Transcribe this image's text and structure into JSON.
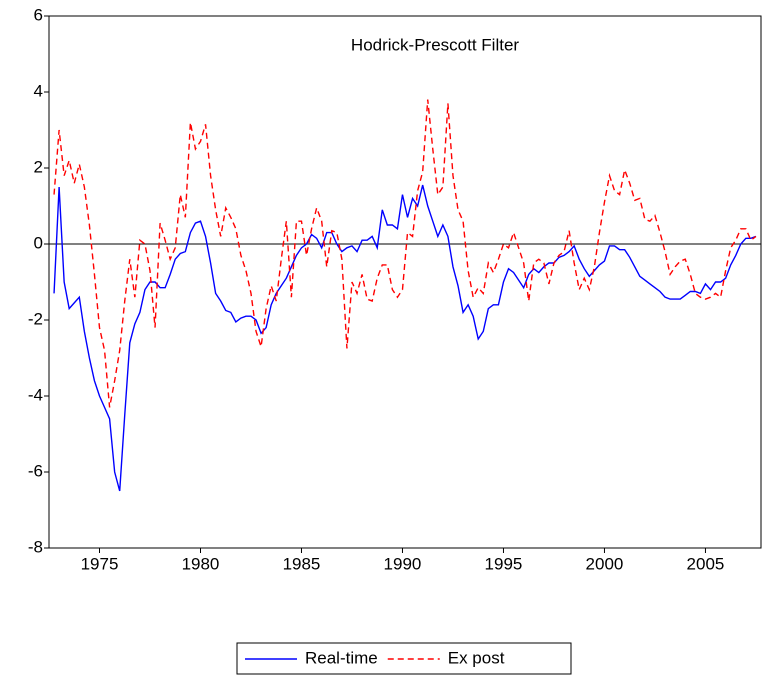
{
  "chart_data": {
    "type": "line",
    "title": "Hodrick-Prescott Filter",
    "x": [
      1972.75,
      1973,
      1973.25,
      1973.5,
      1973.75,
      1974,
      1974.25,
      1974.5,
      1974.75,
      1975,
      1975.25,
      1975.5,
      1975.75,
      1976,
      1976.25,
      1976.5,
      1976.75,
      1977,
      1977.25,
      1977.5,
      1977.75,
      1978,
      1978.25,
      1978.5,
      1978.75,
      1979,
      1979.25,
      1979.5,
      1979.75,
      1980,
      1980.25,
      1980.5,
      1980.75,
      1981,
      1981.25,
      1981.5,
      1981.75,
      1982,
      1982.25,
      1982.5,
      1982.75,
      1983,
      1983.25,
      1983.5,
      1983.75,
      1984,
      1984.25,
      1984.5,
      1984.75,
      1985,
      1985.25,
      1985.5,
      1985.75,
      1986,
      1986.25,
      1986.5,
      1986.75,
      1987,
      1987.25,
      1987.5,
      1987.75,
      1988,
      1988.25,
      1988.5,
      1988.75,
      1989,
      1989.25,
      1989.5,
      1989.75,
      1990,
      1990.25,
      1990.5,
      1990.75,
      1991,
      1991.25,
      1991.5,
      1991.75,
      1992,
      1992.25,
      1992.5,
      1992.75,
      1993,
      1993.25,
      1993.5,
      1993.75,
      1994,
      1994.25,
      1994.5,
      1994.75,
      1995,
      1995.25,
      1995.5,
      1995.75,
      1996,
      1996.25,
      1996.5,
      1996.75,
      1997,
      1997.25,
      1997.5,
      1997.75,
      1998,
      1998.25,
      1998.5,
      1998.75,
      1999,
      1999.25,
      1999.5,
      1999.75,
      2000,
      2000.25,
      2000.5,
      2000.75,
      2001,
      2001.25,
      2001.5,
      2001.75,
      2002,
      2002.25,
      2002.5,
      2002.75,
      2003,
      2003.25,
      2003.5,
      2003.75,
      2004,
      2004.25,
      2004.5,
      2004.75,
      2005,
      2005.25,
      2005.5,
      2005.75,
      2006,
      2006.25,
      2006.5,
      2006.75,
      2007,
      2007.25,
      2007.5
    ],
    "series": [
      {
        "name": "Real-time",
        "color": "#0000ff",
        "style": "solid",
        "values": [
          -1.3,
          1.5,
          -1.0,
          -1.7,
          -1.55,
          -1.4,
          -2.3,
          -3.0,
          -3.6,
          -4.0,
          -4.3,
          -4.6,
          -6.0,
          -6.5,
          -4.5,
          -2.6,
          -2.1,
          -1.8,
          -1.2,
          -1.0,
          -1.0,
          -1.15,
          -1.15,
          -0.8,
          -0.4,
          -0.25,
          -0.2,
          0.3,
          0.55,
          0.6,
          0.2,
          -0.5,
          -1.3,
          -1.5,
          -1.75,
          -1.8,
          -2.05,
          -1.95,
          -1.9,
          -1.9,
          -2.0,
          -2.35,
          -2.2,
          -1.6,
          -1.3,
          -1.1,
          -0.9,
          -0.6,
          -0.3,
          -0.1,
          0.0,
          0.25,
          0.15,
          -0.1,
          0.3,
          0.3,
          0.0,
          -0.2,
          -0.1,
          -0.05,
          -0.2,
          0.1,
          0.1,
          0.2,
          -0.1,
          0.9,
          0.5,
          0.5,
          0.4,
          1.3,
          0.7,
          1.2,
          1.0,
          1.55,
          1.0,
          0.6,
          0.2,
          0.5,
          0.2,
          -0.6,
          -1.1,
          -1.8,
          -1.6,
          -1.9,
          -2.5,
          -2.3,
          -1.7,
          -1.6,
          -1.6,
          -1.0,
          -0.65,
          -0.75,
          -0.95,
          -1.15,
          -0.8,
          -0.65,
          -0.75,
          -0.6,
          -0.5,
          -0.5,
          -0.35,
          -0.3,
          -0.2,
          -0.05,
          -0.4,
          -0.65,
          -0.85,
          -0.7,
          -0.55,
          -0.45,
          -0.05,
          -0.05,
          -0.15,
          -0.15,
          -0.35,
          -0.6,
          -0.85,
          -0.95,
          -1.05,
          -1.15,
          -1.25,
          -1.4,
          -1.45,
          -1.45,
          -1.45,
          -1.35,
          -1.25,
          -1.25,
          -1.3,
          -1.05,
          -1.2,
          -1.0,
          -1.0,
          -0.9,
          -0.55,
          -0.3,
          0.0,
          0.15,
          0.15,
          0.2
        ]
      },
      {
        "name": "Ex post",
        "color": "#ff0000",
        "style": "dashed",
        "values": [
          1.3,
          3.0,
          1.8,
          2.2,
          1.6,
          2.1,
          1.5,
          0.5,
          -0.8,
          -2.2,
          -2.8,
          -4.3,
          -3.6,
          -2.8,
          -1.5,
          -0.4,
          -1.4,
          0.1,
          0.0,
          -0.7,
          -2.2,
          0.55,
          0.1,
          -0.4,
          -0.1,
          1.3,
          0.7,
          3.2,
          2.5,
          2.7,
          3.15,
          1.8,
          0.9,
          0.2,
          0.95,
          0.7,
          0.4,
          -0.3,
          -0.7,
          -1.3,
          -2.3,
          -2.7,
          -1.7,
          -1.1,
          -1.5,
          -0.4,
          0.6,
          -1.4,
          0.6,
          0.6,
          -0.3,
          0.4,
          0.95,
          0.6,
          -0.6,
          0.35,
          0.3,
          -0.4,
          -2.75,
          -1.0,
          -1.3,
          -0.8,
          -1.45,
          -1.5,
          -0.9,
          -0.55,
          -0.55,
          -1.2,
          -1.4,
          -1.2,
          0.3,
          0.2,
          1.4,
          1.9,
          3.8,
          2.5,
          1.3,
          1.5,
          3.7,
          1.8,
          0.9,
          0.6,
          -0.7,
          -1.4,
          -1.15,
          -1.3,
          -0.5,
          -0.75,
          -0.4,
          0.0,
          -0.1,
          0.3,
          -0.1,
          -0.5,
          -1.5,
          -0.5,
          -0.4,
          -0.5,
          -1.05,
          -0.5,
          -0.3,
          -0.2,
          0.35,
          -0.5,
          -1.2,
          -0.9,
          -1.2,
          -0.6,
          0.3,
          1.1,
          1.8,
          1.4,
          1.3,
          1.95,
          1.6,
          1.15,
          1.2,
          0.65,
          0.6,
          0.75,
          0.3,
          -0.2,
          -0.8,
          -0.6,
          -0.45,
          -0.4,
          -0.8,
          -1.3,
          -1.4,
          -1.45,
          -1.4,
          -1.3,
          -1.4,
          -0.7,
          -0.1,
          0.1,
          0.4,
          0.4,
          0.1,
          0.2
        ]
      }
    ],
    "xlim": [
      1972.5,
      2007.75
    ],
    "xticks": [
      1975,
      1980,
      1985,
      1990,
      1995,
      2000,
      2005
    ],
    "ylim": [
      -8,
      6
    ],
    "yticks": [
      -8,
      -6,
      -4,
      -2,
      0,
      2,
      4,
      6
    ],
    "zero_line": true,
    "legend": "bottom"
  }
}
